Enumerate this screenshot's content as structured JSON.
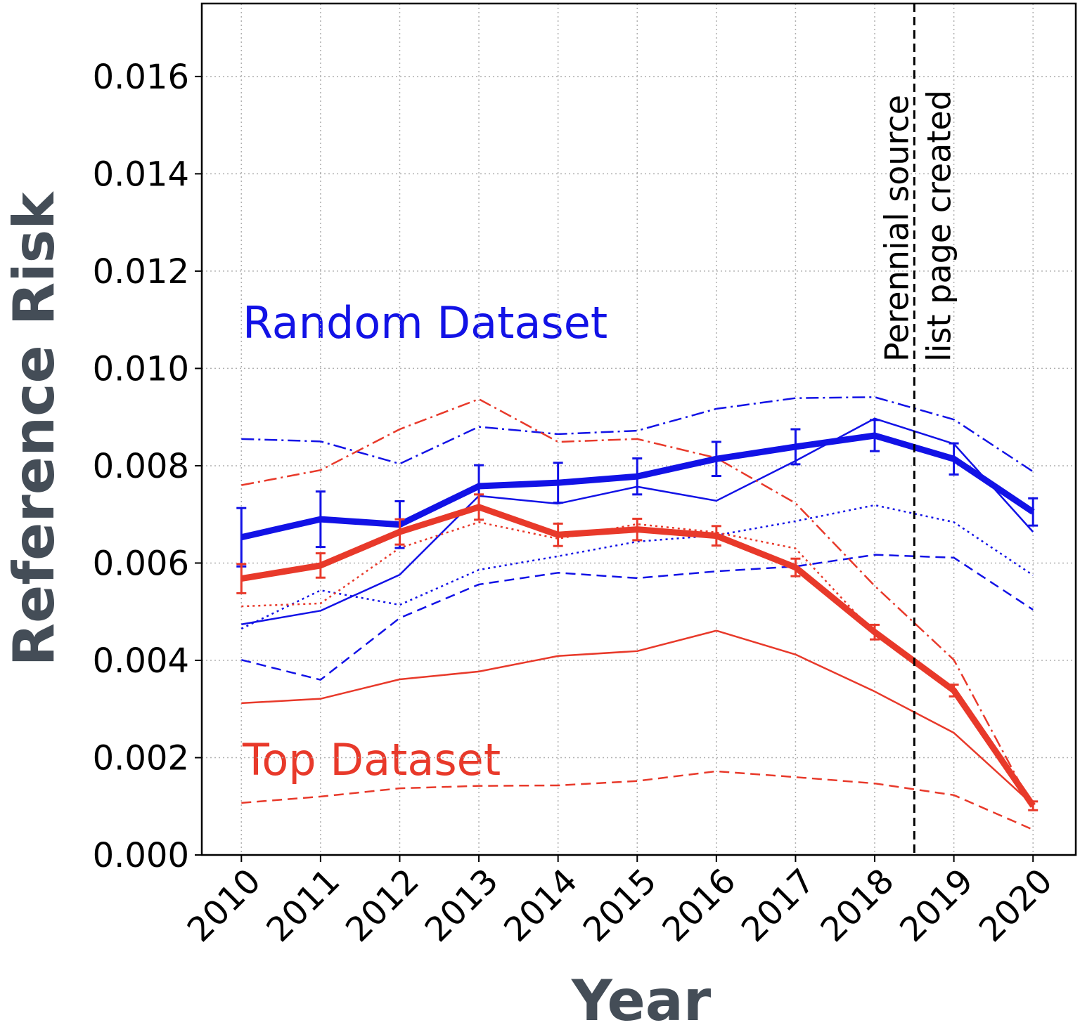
{
  "chart_data": {
    "type": "line",
    "x_label": "Year",
    "y_label": "Reference Risk",
    "x": [
      2010,
      2011,
      2012,
      2013,
      2014,
      2015,
      2016,
      2017,
      2018,
      2019,
      2020
    ],
    "xlim": [
      2009.5,
      2020.54
    ],
    "xticks": [
      2010,
      2011,
      2012,
      2013,
      2014,
      2015,
      2016,
      2017,
      2018,
      2019,
      2020
    ],
    "ylim": [
      0,
      0.0175
    ],
    "yticks": [
      {
        "value": 0,
        "label": "0.000"
      },
      {
        "value": 0.002,
        "label": "0.002"
      },
      {
        "value": 0.004,
        "label": "0.004"
      },
      {
        "value": 0.006,
        "label": "0.006"
      },
      {
        "value": 0.008,
        "label": "0.008"
      },
      {
        "value": 0.01,
        "label": "0.010"
      },
      {
        "value": 0.012,
        "label": "0.012"
      },
      {
        "value": 0.014,
        "label": "0.014"
      },
      {
        "value": 0.016,
        "label": "0.016"
      }
    ],
    "grid": true,
    "annotations": [
      {
        "text": "Random Dataset",
        "color": "#1212e6"
      },
      {
        "text": "Top Dataset",
        "color": "#e8392a"
      }
    ],
    "vline": {
      "x": 2018.5,
      "label": [
        "Perennial source",
        "list page created"
      ]
    },
    "series": [
      {
        "color": "#1212e6",
        "style": "dashdot",
        "width": 2.5,
        "values": [
          0.00855,
          0.0085,
          0.00804,
          0.0088,
          0.00865,
          0.00872,
          0.00917,
          0.00939,
          0.00941,
          0.00895,
          0.00788
        ]
      },
      {
        "color": "#1212e6",
        "style": "solid",
        "width": 2.5,
        "values": [
          0.00474,
          0.00502,
          0.00576,
          0.00738,
          0.00722,
          0.00757,
          0.00728,
          0.0081,
          0.00897,
          0.00845,
          0.00664
        ]
      },
      {
        "color": "#1212e6",
        "style": "dotted",
        "width": 2.5,
        "values": [
          0.00465,
          0.00544,
          0.00514,
          0.00586,
          0.00614,
          0.00644,
          0.00657,
          0.00686,
          0.00719,
          0.00684,
          0.00575
        ]
      },
      {
        "color": "#1212e6",
        "style": "dashed",
        "width": 2.5,
        "values": [
          0.00401,
          0.0036,
          0.00487,
          0.00556,
          0.0058,
          0.00569,
          0.00583,
          0.00593,
          0.00617,
          0.00611,
          0.00504
        ]
      },
      {
        "color": "#e8392a",
        "style": "dashdot",
        "width": 2.5,
        "values": [
          0.0076,
          0.00791,
          0.00875,
          0.00937,
          0.00849,
          0.00855,
          0.00816,
          0.00723,
          0.00553,
          0.00401,
          0.00097
        ]
      },
      {
        "color": "#e8392a",
        "style": "dotted",
        "width": 2.5,
        "values": [
          0.00511,
          0.00517,
          0.00631,
          0.00684,
          0.0065,
          0.0068,
          0.00663,
          0.0063,
          0.00455,
          0.0034,
          0.00097
        ]
      },
      {
        "color": "#e8392a",
        "style": "solid",
        "width": 2.5,
        "values": [
          0.00312,
          0.00321,
          0.00361,
          0.00377,
          0.00409,
          0.00419,
          0.00461,
          0.00412,
          0.00336,
          0.00251,
          0.00103
        ]
      },
      {
        "color": "#e8392a",
        "style": "dashed",
        "width": 2.5,
        "values": [
          0.00107,
          0.0012,
          0.00137,
          0.00142,
          0.00143,
          0.00152,
          0.00172,
          0.0016,
          0.00147,
          0.00123,
          0.00052
        ]
      },
      {
        "color": "#1212e6",
        "style": "solid",
        "width": 9,
        "values": [
          0.00653,
          0.0069,
          0.00679,
          0.00758,
          0.00765,
          0.00778,
          0.00814,
          0.00839,
          0.00862,
          0.00814,
          0.00705
        ],
        "errors": [
          0.0006,
          0.00057,
          0.00048,
          0.00043,
          0.00041,
          0.00037,
          0.00035,
          0.00036,
          0.00032,
          0.00032,
          0.00028
        ]
      },
      {
        "color": "#e8392a",
        "style": "solid",
        "width": 9,
        "values": [
          0.00568,
          0.00595,
          0.00664,
          0.00715,
          0.00658,
          0.00669,
          0.00656,
          0.00591,
          0.00458,
          0.00338,
          0.00101
        ],
        "errors": [
          0.0003,
          0.00025,
          0.00026,
          0.00026,
          0.00023,
          0.00022,
          0.0002,
          0.00018,
          0.00015,
          0.00012,
          9e-05
        ]
      }
    ]
  }
}
